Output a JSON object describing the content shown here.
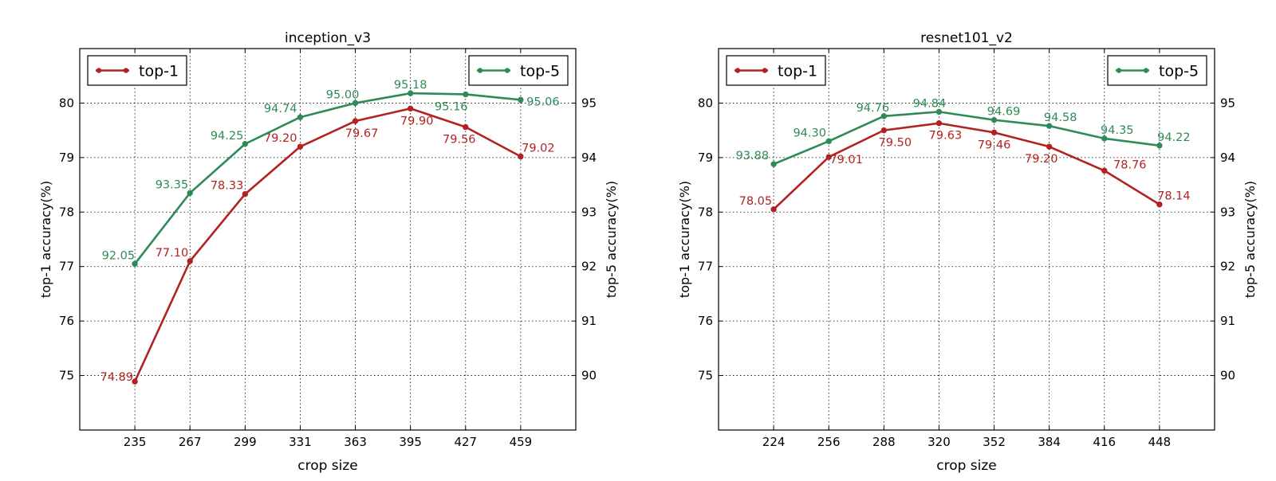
{
  "chart_data": [
    {
      "type": "line",
      "title": "inception_v3",
      "xlabel": "crop size",
      "ylabel": "top-1 accuracy(%)",
      "y2label": "top-5 accuracy(%)",
      "categories": [
        "235",
        "267",
        "299",
        "331",
        "363",
        "395",
        "427",
        "459"
      ],
      "ylim": [
        74,
        81
      ],
      "y2lim": [
        89,
        96
      ],
      "yticks": [
        75,
        76,
        77,
        78,
        79,
        80
      ],
      "y2ticks": [
        90,
        91,
        92,
        93,
        94,
        95
      ],
      "grid": true,
      "series": [
        {
          "name": "top-1",
          "axis": "left",
          "color": "#b22222",
          "legend": "top-left",
          "values": [
            74.89,
            77.1,
            78.33,
            79.2,
            79.67,
            79.9,
            79.56,
            79.02
          ],
          "labels": [
            "74.89",
            "77.10",
            "78.33",
            "79.20",
            "79.67",
            "79.90",
            "79.56",
            "79.02"
          ]
        },
        {
          "name": "top-5",
          "axis": "right",
          "color": "#2e8b57",
          "legend": "top-right",
          "values": [
            92.05,
            93.35,
            94.25,
            94.74,
            95.0,
            95.18,
            95.16,
            95.06
          ],
          "labels": [
            "92.05",
            "93.35",
            "94.25",
            "94.74",
            "95.00",
            "95.18",
            "95.16",
            "95.06"
          ]
        }
      ]
    },
    {
      "type": "line",
      "title": "resnet101_v2",
      "xlabel": "crop size",
      "ylabel": "top-1 accuracy(%)",
      "y2label": "top-5 accuracy(%)",
      "categories": [
        "224",
        "256",
        "288",
        "320",
        "352",
        "384",
        "416",
        "448"
      ],
      "ylim": [
        74,
        81
      ],
      "y2lim": [
        89,
        96
      ],
      "yticks": [
        75,
        76,
        77,
        78,
        79,
        80
      ],
      "y2ticks": [
        90,
        91,
        92,
        93,
        94,
        95
      ],
      "grid": true,
      "series": [
        {
          "name": "top-1",
          "axis": "left",
          "color": "#b22222",
          "legend": "top-left",
          "values": [
            78.05,
            79.01,
            79.5,
            79.63,
            79.46,
            79.2,
            78.76,
            78.14
          ],
          "labels": [
            "78.05",
            "79.01",
            "79.50",
            "79.63",
            "79.46",
            "79.20",
            "78.76",
            "78.14"
          ]
        },
        {
          "name": "top-5",
          "axis": "right",
          "color": "#2e8b57",
          "legend": "top-right",
          "values": [
            93.88,
            94.3,
            94.76,
            94.84,
            94.69,
            94.58,
            94.35,
            94.22
          ],
          "labels": [
            "93.88",
            "94.30",
            "94.76",
            "94.84",
            "94.69",
            "94.58",
            "94.35",
            "94.22"
          ]
        }
      ]
    }
  ]
}
